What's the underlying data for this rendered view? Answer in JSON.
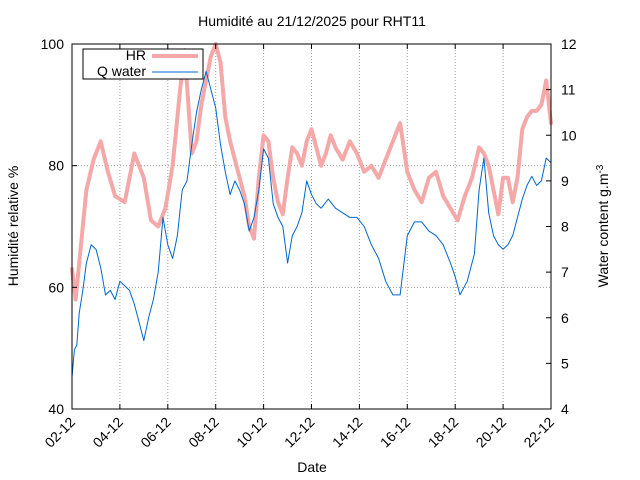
{
  "chart_data": {
    "type": "line",
    "title": "Humidité au 21/12/2025 pour RHT11",
    "xlabel": "Date",
    "ylabel": "Humidité relative %",
    "y2label_main": "Water content g.m",
    "y2label_sup": "-3",
    "x_ticks": [
      "02-12",
      "04-12",
      "06-12",
      "08-12",
      "10-12",
      "12-12",
      "14-12",
      "16-12",
      "18-12",
      "20-12",
      "22-12"
    ],
    "xlim": [
      2,
      22
    ],
    "y_ticks": [
      "40",
      "60",
      "80",
      "100"
    ],
    "ylim": [
      40,
      100
    ],
    "y2_ticks": [
      "4",
      "5",
      "6",
      "7",
      "8",
      "9",
      "10",
      "11",
      "12"
    ],
    "y2lim": [
      4,
      12
    ],
    "grid": true,
    "legend_position": "top-left",
    "series": [
      {
        "name": "HR",
        "axis": "y",
        "color": "#f4a8a8",
        "x": [
          2.0,
          2.15,
          2.35,
          2.6,
          2.9,
          3.2,
          3.5,
          3.8,
          4.2,
          4.6,
          5.0,
          5.3,
          5.6,
          5.9,
          6.2,
          6.5,
          6.7,
          7.0,
          7.2,
          7.4,
          7.6,
          7.8,
          8.0,
          8.2,
          8.4,
          8.6,
          8.8,
          9.0,
          9.2,
          9.4,
          9.6,
          9.8,
          10.0,
          10.2,
          10.4,
          10.6,
          10.8,
          11.0,
          11.2,
          11.4,
          11.6,
          11.8,
          12.0,
          12.2,
          12.4,
          12.6,
          12.8,
          13.0,
          13.3,
          13.6,
          13.9,
          14.2,
          14.5,
          14.8,
          15.1,
          15.4,
          15.7,
          16.0,
          16.3,
          16.6,
          16.9,
          17.2,
          17.5,
          17.8,
          18.1,
          18.4,
          18.7,
          19.0,
          19.2,
          19.4,
          19.6,
          19.8,
          20.0,
          20.2,
          20.4,
          20.6,
          20.8,
          21.0,
          21.2,
          21.4,
          21.6,
          21.8,
          22.0
        ],
        "values": [
          63,
          58,
          66,
          76,
          81,
          84,
          79,
          75,
          74,
          82,
          78,
          71,
          70,
          73,
          80,
          92,
          99,
          82,
          84,
          90,
          94,
          98,
          100,
          97,
          88,
          84,
          81,
          78,
          75,
          70,
          68,
          78,
          85,
          84,
          78,
          74,
          72,
          78,
          83,
          82,
          80,
          84,
          86,
          83,
          80,
          82,
          85,
          83,
          81,
          84,
          82,
          79,
          80,
          78,
          81,
          84,
          87,
          79,
          76,
          74,
          78,
          79,
          75,
          73,
          71,
          75,
          78,
          83,
          82,
          80,
          76,
          72,
          78,
          78,
          74,
          78,
          86,
          88,
          89,
          89,
          90,
          94,
          87
        ]
      },
      {
        "name": "Q water",
        "axis": "y2",
        "color": "#0066cc",
        "x": [
          2.0,
          2.1,
          2.2,
          2.3,
          2.45,
          2.6,
          2.8,
          3.0,
          3.2,
          3.4,
          3.6,
          3.8,
          4.0,
          4.2,
          4.4,
          4.6,
          4.8,
          5.0,
          5.2,
          5.4,
          5.6,
          5.8,
          6.0,
          6.2,
          6.4,
          6.6,
          6.8,
          7.0,
          7.2,
          7.4,
          7.6,
          7.8,
          8.0,
          8.2,
          8.4,
          8.6,
          8.8,
          9.0,
          9.2,
          9.4,
          9.6,
          9.8,
          10.0,
          10.2,
          10.4,
          10.6,
          10.8,
          11.0,
          11.2,
          11.4,
          11.6,
          11.8,
          12.0,
          12.2,
          12.4,
          12.7,
          13.0,
          13.3,
          13.6,
          13.9,
          14.2,
          14.5,
          14.8,
          15.1,
          15.4,
          15.7,
          16.0,
          16.3,
          16.6,
          16.9,
          17.2,
          17.5,
          17.8,
          18.0,
          18.2,
          18.5,
          18.8,
          19.0,
          19.2,
          19.4,
          19.6,
          19.8,
          20.0,
          20.2,
          20.4,
          20.6,
          20.8,
          21.0,
          21.2,
          21.4,
          21.6,
          21.8,
          22.0
        ],
        "values": [
          4.7,
          5.3,
          5.4,
          6.1,
          6.6,
          7.2,
          7.6,
          7.5,
          7.1,
          6.5,
          6.6,
          6.4,
          6.8,
          6.7,
          6.6,
          6.3,
          5.9,
          5.5,
          6.0,
          6.4,
          7.0,
          8.2,
          7.6,
          7.3,
          7.8,
          8.8,
          9.0,
          9.8,
          10.5,
          11.0,
          11.4,
          11.0,
          10.6,
          9.8,
          9.2,
          8.7,
          9.0,
          8.8,
          8.5,
          7.9,
          8.2,
          8.8,
          9.7,
          9.5,
          8.5,
          8.2,
          8.0,
          7.2,
          7.8,
          8.0,
          8.3,
          9.0,
          8.7,
          8.5,
          8.4,
          8.6,
          8.4,
          8.3,
          8.2,
          8.2,
          8.0,
          7.6,
          7.3,
          6.8,
          6.5,
          6.5,
          7.8,
          8.1,
          8.1,
          7.9,
          7.8,
          7.6,
          7.2,
          6.9,
          6.5,
          6.8,
          7.4,
          8.8,
          9.5,
          8.3,
          7.8,
          7.6,
          7.5,
          7.6,
          7.8,
          8.2,
          8.6,
          8.9,
          9.1,
          8.9,
          9.0,
          9.5,
          9.4
        ]
      }
    ]
  }
}
